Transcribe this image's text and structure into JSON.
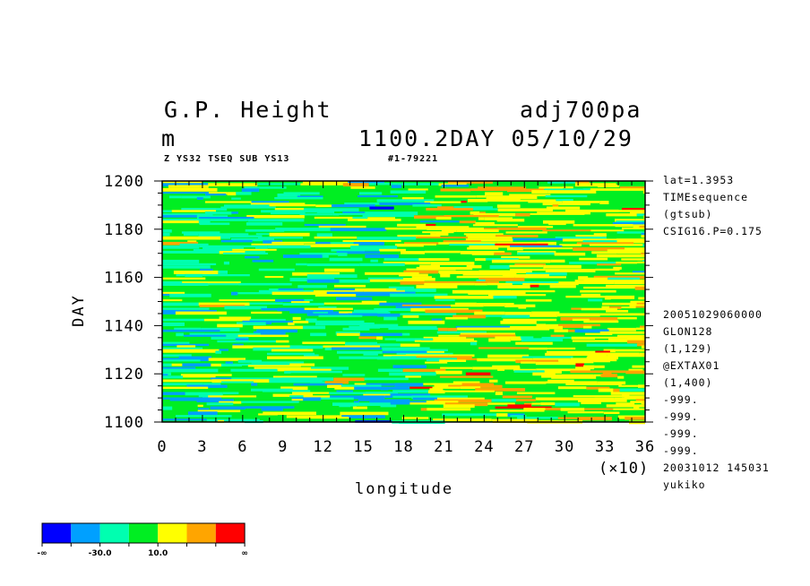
{
  "header": {
    "title_left": "G.P. Height",
    "title_right": "adj700pa",
    "units": "m",
    "time_label": "1100.2DAY 05/10/29",
    "subtitle": "Z YS32 TSEQ SUB YS13",
    "run_id": "#1-79221"
  },
  "info_upper": [
    "lat=1.3953",
    "TIMEsequence",
    "(gtsub)",
    "CSIG16.P=0.175"
  ],
  "info_lower": [
    "20051029060000",
    "GLON128",
    "(1,129)",
    "@EXTAX01",
    "(1,400)",
    "-999.",
    "-999.",
    "-999.",
    "-999."
  ],
  "footer": {
    "timestamp": "20031012 145031",
    "user": "yukiko"
  },
  "chart_data": {
    "type": "heatmap",
    "xlabel": "longitude",
    "ylabel": "DAY",
    "x_multiplier": "(×10)",
    "xlim": [
      0,
      36
    ],
    "ylim": [
      1100,
      1200
    ],
    "x_ticks": [
      "0",
      "3",
      "6",
      "9",
      "12",
      "15",
      "18",
      "21",
      "24",
      "27",
      "30",
      "33",
      "36"
    ],
    "y_ticks": [
      "1100",
      "1120",
      "1140",
      "1160",
      "1180",
      "1200"
    ],
    "legend": {
      "colors": [
        "#0000ff",
        "#00a0ff",
        "#00ffb0",
        "#00ee22",
        "#ffff00",
        "#ffa500",
        "#ff0000"
      ],
      "labels": [
        "-∞",
        "-30.0",
        "10.0",
        "∞"
      ]
    }
  }
}
